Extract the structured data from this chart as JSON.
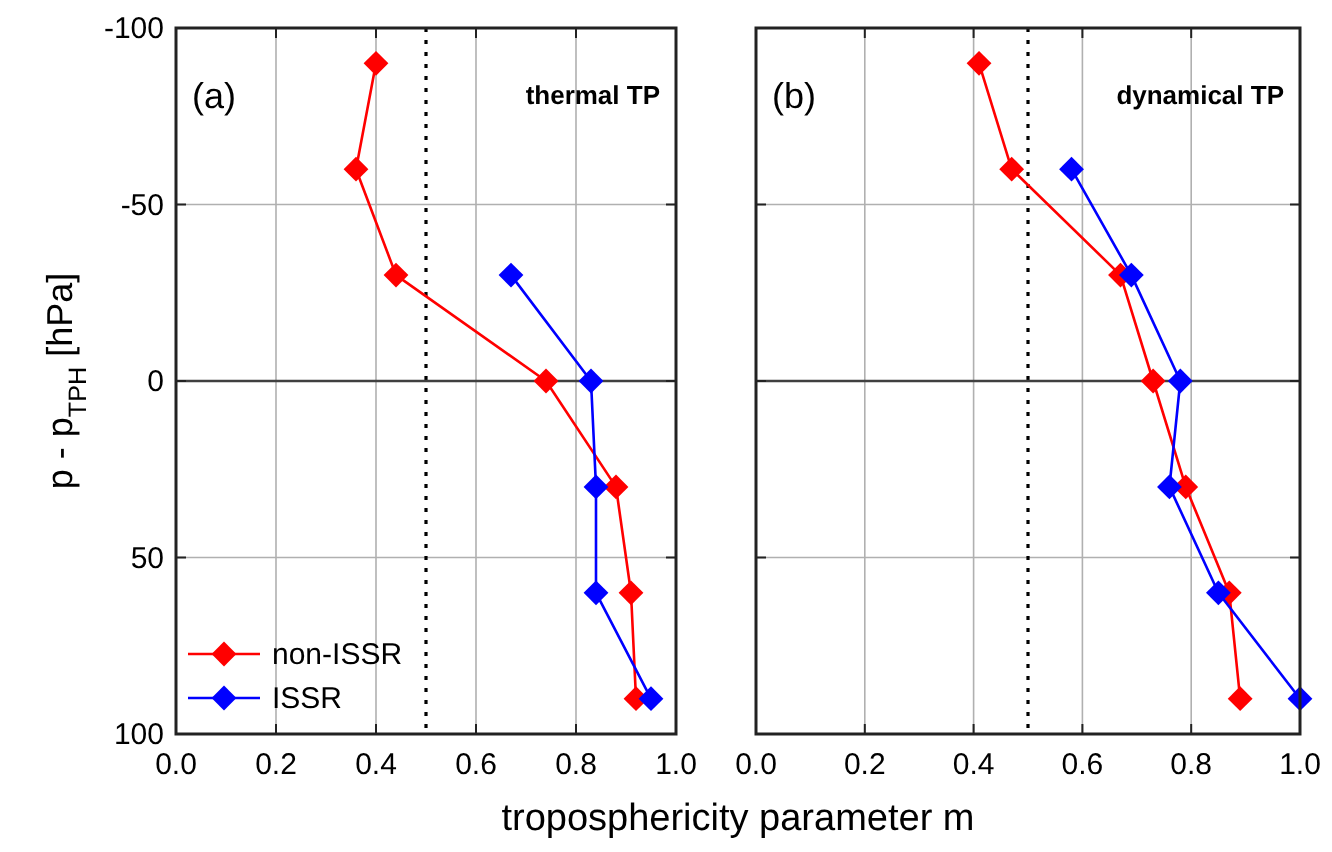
{
  "chart_data": [
    {
      "type": "line",
      "ylabel": "p - p$_{TPH}$  [hPa]",
      "xlabel": "troposphericity parameter m",
      "annotations": [
        "(a)",
        "thermal TP"
      ],
      "xlim": [
        0,
        1
      ],
      "xticks": [
        {
          "value": 0,
          "label": "0.0"
        },
        {
          "value": 0.2,
          "label": "0.2"
        },
        {
          "value": 0.4,
          "label": "0.4"
        },
        {
          "value": 0.6,
          "label": "0.6"
        },
        {
          "value": 0.8,
          "label": "0.8"
        },
        {
          "value": 1,
          "label": "1.0"
        }
      ],
      "ylim": [
        100,
        -100
      ],
      "yticks": [
        -100,
        -50,
        0,
        50,
        100
      ],
      "grid": true,
      "legend": "bottom left",
      "marker": "diamond",
      "line_style": "solid",
      "ref_lines": [
        {
          "axis": "x",
          "value": 0.5,
          "color": "#000000",
          "line_style": "dotted"
        },
        {
          "axis": "y",
          "value": 0,
          "color": "#404040",
          "line_style": "solid"
        }
      ],
      "series": [
        {
          "name": "non-ISSR",
          "color": "#ff0000",
          "x": [
            0.4,
            0.36,
            0.44,
            0.74,
            0.88,
            0.91,
            0.92
          ],
          "values": [
            -90,
            -60,
            -30,
            0,
            30,
            60,
            90
          ]
        },
        {
          "name": "ISSR",
          "color": "#0000ff",
          "x": [
            0.67,
            0.83,
            0.84,
            0.84,
            0.95
          ],
          "values": [
            -30,
            0,
            30,
            60,
            90
          ]
        }
      ]
    },
    {
      "type": "line",
      "annotations": [
        "(b)",
        "dynamical TP"
      ],
      "tick_labels": "x",
      "xlim": [
        0,
        1
      ],
      "xticks": [
        {
          "value": 0,
          "label": "0.0"
        },
        {
          "value": 0.2,
          "label": "0.2"
        },
        {
          "value": 0.4,
          "label": "0.4"
        },
        {
          "value": 0.6,
          "label": "0.6"
        },
        {
          "value": 0.8,
          "label": "0.8"
        },
        {
          "value": 1,
          "label": "1.0"
        }
      ],
      "ylim": [
        100,
        -100
      ],
      "yticks": [
        -100,
        -50,
        0,
        50,
        100
      ],
      "grid": true,
      "marker": "diamond",
      "line_style": "solid",
      "ref_lines": [
        {
          "axis": "x",
          "value": 0.5,
          "color": "#000000",
          "line_style": "dotted"
        },
        {
          "axis": "y",
          "value": 0,
          "color": "#404040",
          "line_style": "solid"
        }
      ],
      "series": [
        {
          "color": "#ff0000",
          "x": [
            0.41,
            0.47,
            0.67,
            0.73,
            0.79,
            0.87,
            0.89
          ],
          "values": [
            -90,
            -60,
            -30,
            0,
            30,
            60,
            90
          ]
        },
        {
          "color": "#0000ff",
          "x": [
            0.58,
            0.69,
            0.78,
            0.76,
            0.85,
            1.0
          ],
          "values": [
            -60,
            -30,
            0,
            30,
            60,
            90
          ]
        }
      ]
    }
  ]
}
